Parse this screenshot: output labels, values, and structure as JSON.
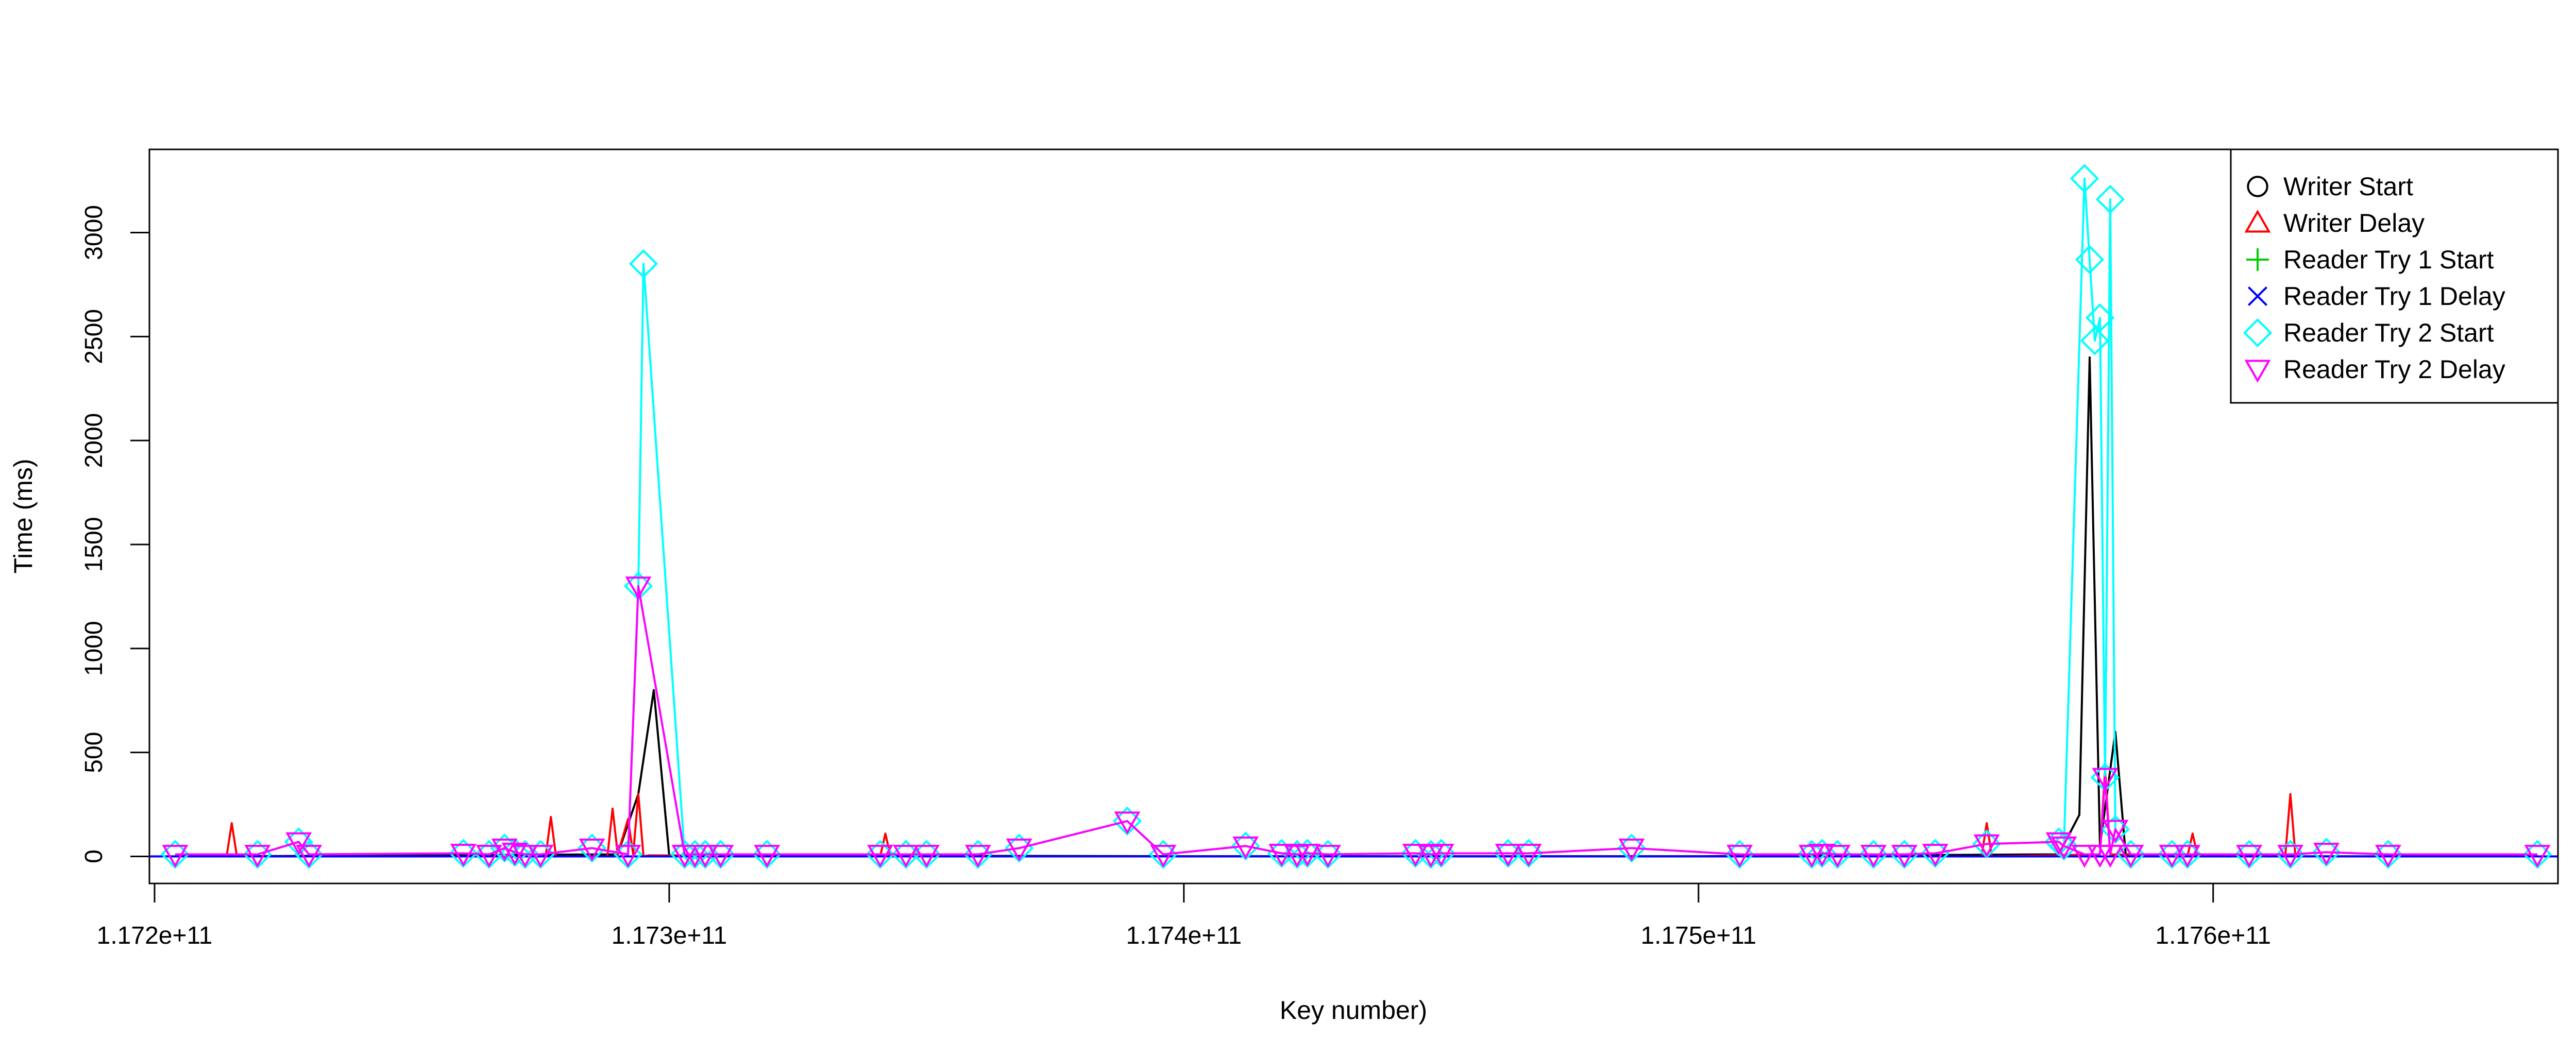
{
  "chart_data": {
    "type": "line",
    "title": "",
    "xlabel": "Key number)",
    "ylabel": "Time (ms)",
    "xlim": [
      117199000000,
      117667000000
    ],
    "ylim": [
      -130,
      3400
    ],
    "x_ticks": [
      117200000000,
      117300000000,
      117400000000,
      117500000000,
      117600000000
    ],
    "x_tick_labels": [
      "1.172e+11",
      "1.173e+11",
      "1.174e+11",
      "1.175e+11",
      "1.176e+11"
    ],
    "y_ticks": [
      0,
      500,
      1000,
      1500,
      2000,
      2500,
      3000
    ],
    "y_tick_labels": [
      "0",
      "500",
      "1000",
      "1500",
      "2000",
      "2500",
      "3000"
    ],
    "grid": false,
    "legend_position": "top-right",
    "series": [
      {
        "name": "Writer Start",
        "color": "#000000",
        "marker": "circle",
        "show_markers": false,
        "x": [
          117199000000,
          117225000000,
          117290000000,
          117294000000,
          117297000000,
          117300000000,
          117400000000,
          117500000000,
          117570000000,
          117574000000,
          117576000000,
          117578000000,
          117581000000,
          117583000000,
          117600000000,
          117667000000
        ],
        "y": [
          0,
          2,
          10,
          300,
          800,
          5,
          1,
          1,
          10,
          200,
          2400,
          50,
          600,
          10,
          1,
          0
        ]
      },
      {
        "name": "Writer Delay",
        "color": "#ff0000",
        "marker": "triangle-up",
        "show_markers": false,
        "x": [
          117199000000,
          117214000000,
          117215000000,
          117216000000,
          117276000000,
          117277000000,
          117278000000,
          117288000000,
          117289000000,
          117290000000,
          117292000000,
          117293000000,
          117294000000,
          117295000000,
          117296000000,
          117341000000,
          117342000000,
          117343000000,
          117555000000,
          117556000000,
          117557000000,
          117578000000,
          117579000000,
          117580000000,
          117595000000,
          117596000000,
          117597000000,
          117614000000,
          117615000000,
          117616000000,
          117667000000
        ],
        "y": [
          0,
          0,
          160,
          0,
          0,
          190,
          0,
          0,
          230,
          10,
          180,
          10,
          300,
          0,
          5,
          0,
          110,
          0,
          0,
          160,
          0,
          10,
          420,
          10,
          0,
          110,
          0,
          0,
          300,
          0,
          0
        ]
      },
      {
        "name": "Reader Try 1 Start",
        "color": "#00cd00",
        "marker": "plus",
        "show_markers": false,
        "x": [
          117199000000,
          117667000000
        ],
        "y": [
          0,
          0
        ]
      },
      {
        "name": "Reader Try 1 Delay",
        "color": "#0000ff",
        "marker": "x",
        "show_markers": false,
        "x": [
          117199000000,
          117667000000
        ],
        "y": [
          0,
          0
        ]
      },
      {
        "name": "Reader Try 2 Start",
        "color": "#00ffff",
        "marker": "diamond",
        "show_markers": true,
        "x": [
          117204000000,
          117220000000,
          117228000000,
          117230000000,
          117260000000,
          117265000000,
          117268000000,
          117270000000,
          117272000000,
          117275000000,
          117285000000,
          117292000000,
          117294000000,
          117295000000,
          117303000000,
          117305000000,
          117307000000,
          117310000000,
          117319000000,
          117341000000,
          117346000000,
          117350000000,
          117360000000,
          117368000000,
          117389000000,
          117396000000,
          117412000000,
          117419000000,
          117422000000,
          117424000000,
          117428000000,
          117445000000,
          117448000000,
          117450000000,
          117463000000,
          117467000000,
          117487000000,
          117508000000,
          117522000000,
          117524000000,
          117527000000,
          117534000000,
          117540000000,
          117546000000,
          117556000000,
          117570000000,
          117571000000,
          117575000000,
          117576000000,
          117577000000,
          117578000000,
          117579000000,
          117580000000,
          117581000000,
          117584000000,
          117592000000,
          117595000000,
          117607000000,
          117615000000,
          117622000000,
          117634000000,
          117663000000
        ],
        "y": [
          10,
          10,
          70,
          10,
          15,
          10,
          40,
          20,
          10,
          10,
          40,
          10,
          1300,
          2850,
          10,
          10,
          10,
          10,
          10,
          10,
          10,
          10,
          10,
          40,
          170,
          10,
          50,
          15,
          10,
          15,
          10,
          15,
          10,
          15,
          15,
          15,
          40,
          10,
          10,
          15,
          10,
          10,
          10,
          15,
          60,
          70,
          50,
          3260,
          2870,
          2480,
          2590,
          380,
          3160,
          130,
          10,
          10,
          10,
          10,
          10,
          20,
          10,
          10
        ]
      },
      {
        "name": "Reader Try 2 Delay",
        "color": "#ff00ff",
        "marker": "triangle-down",
        "show_markers": true,
        "x": [
          117204000000,
          117220000000,
          117228000000,
          117230000000,
          117260000000,
          117265000000,
          117268000000,
          117270000000,
          117272000000,
          117275000000,
          117285000000,
          117292000000,
          117294000000,
          117303000000,
          117305000000,
          117307000000,
          117310000000,
          117319000000,
          117341000000,
          117346000000,
          117350000000,
          117360000000,
          117368000000,
          117389000000,
          117396000000,
          117412000000,
          117419000000,
          117422000000,
          117424000000,
          117428000000,
          117445000000,
          117448000000,
          117450000000,
          117463000000,
          117467000000,
          117487000000,
          117508000000,
          117522000000,
          117524000000,
          117527000000,
          117534000000,
          117540000000,
          117546000000,
          117556000000,
          117570000000,
          117571000000,
          117575000000,
          117578000000,
          117579000000,
          117580000000,
          117581000000,
          117584000000,
          117592000000,
          117595000000,
          117607000000,
          117615000000,
          117622000000,
          117634000000,
          117663000000
        ],
        "y": [
          10,
          10,
          70,
          10,
          15,
          10,
          40,
          20,
          10,
          10,
          40,
          10,
          1300,
          10,
          10,
          10,
          10,
          10,
          10,
          10,
          10,
          10,
          40,
          170,
          10,
          50,
          15,
          10,
          15,
          10,
          15,
          10,
          15,
          15,
          15,
          40,
          10,
          10,
          15,
          10,
          10,
          10,
          15,
          60,
          70,
          50,
          10,
          10,
          380,
          10,
          130,
          10,
          10,
          10,
          10,
          10,
          20,
          10,
          10
        ]
      }
    ]
  }
}
